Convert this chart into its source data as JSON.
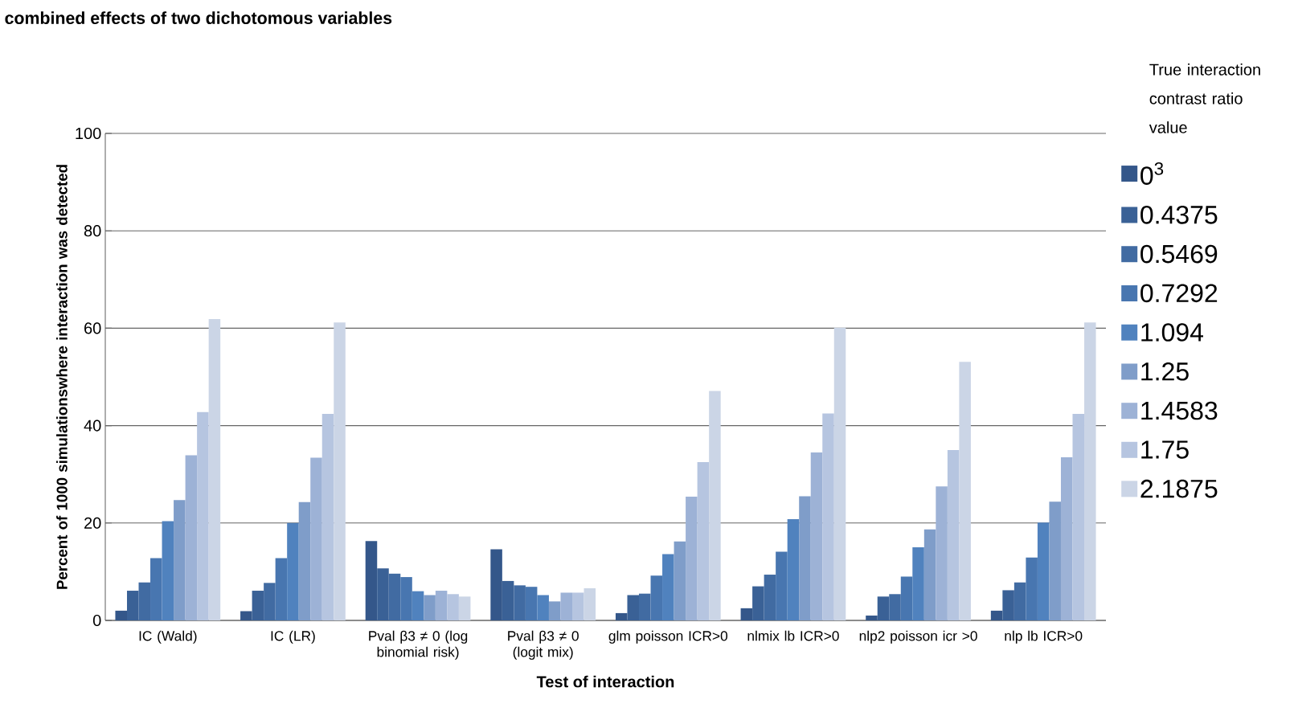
{
  "chart_data": {
    "type": "bar",
    "title": "combined effects of two dichotomous variables",
    "xlabel": "Test of interaction",
    "ylabel": "Percent of 1000 simulationswhere interaction was detected",
    "legend_title": "True interaction contrast ratio value",
    "categories": [
      "IC (Wald)",
      "IC (LR)",
      "Pval β3 ≠ 0 (log binomial risk)",
      "Pval β3 ≠ 0 (logit mix)",
      "glm poisson ICR>0",
      "nlmix lb ICR>0",
      "nlp2 poisson icr >0",
      "nlp lb ICR>0"
    ],
    "series": [
      {
        "name": "0$^{3}$",
        "color": "#34578a",
        "values": [
          2.0,
          1.9,
          16.3,
          14.6,
          1.5,
          2.5,
          1.0,
          2.0
        ]
      },
      {
        "name": "0.4375",
        "color": "#3a6196",
        "values": [
          6.1,
          6.1,
          10.7,
          8.1,
          5.2,
          7.0,
          4.9,
          6.2
        ]
      },
      {
        "name": "0.5469",
        "color": "#416ba2",
        "values": [
          7.8,
          7.7,
          9.6,
          7.2,
          5.5,
          9.4,
          5.4,
          7.8
        ]
      },
      {
        "name": "0.7292",
        "color": "#4876b0",
        "values": [
          12.8,
          12.8,
          8.9,
          6.9,
          9.2,
          14.1,
          9.0,
          12.9
        ]
      },
      {
        "name": "1.094",
        "color": "#5082be",
        "values": [
          20.4,
          20.0,
          6.0,
          5.2,
          13.6,
          20.8,
          15.0,
          20.1
        ]
      },
      {
        "name": "1.25",
        "color": "#7f9dc9",
        "values": [
          24.7,
          24.3,
          5.2,
          3.9,
          16.2,
          25.5,
          18.7,
          24.4
        ]
      },
      {
        "name": "1.4583",
        "color": "#9db2d6",
        "values": [
          33.9,
          33.4,
          6.1,
          5.7,
          25.4,
          34.5,
          27.5,
          33.5
        ]
      },
      {
        "name": "1.75",
        "color": "#b6c5e0",
        "values": [
          42.8,
          42.4,
          5.4,
          5.7,
          32.5,
          42.5,
          35.0,
          42.4
        ]
      },
      {
        "name": "2.1875",
        "color": "#cbd5e6",
        "values": [
          61.9,
          61.2,
          4.9,
          6.6,
          47.1,
          60.1,
          53.1,
          61.2
        ]
      }
    ],
    "ylim": [
      0,
      100
    ],
    "yticks": [
      0,
      20,
      40,
      60,
      80,
      100
    ],
    "grid": "y",
    "legend": "right"
  }
}
